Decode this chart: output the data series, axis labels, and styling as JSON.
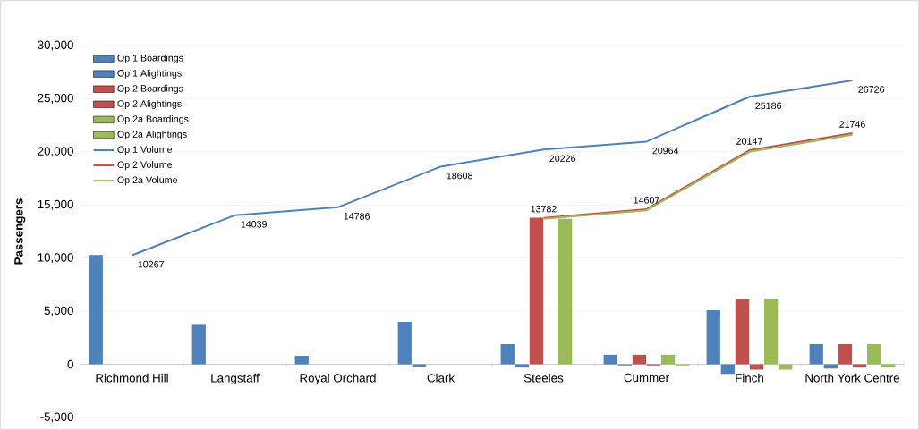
{
  "chart_data": {
    "type": "bar",
    "ylabel": "Passengers",
    "categories": [
      "Richmond Hill",
      "Langstaff",
      "Royal Orchard",
      "Clark",
      "Steeles",
      "Cummer",
      "Finch",
      "North York Centre"
    ],
    "series": [
      {
        "name": "Op 1 Boardings",
        "color": "#4f81bd",
        "values": [
          10300,
          3800,
          800,
          4000,
          1900,
          900,
          5100,
          1900
        ]
      },
      {
        "name": "Op 1 Alightings",
        "color": "#4f81bd",
        "values": [
          0,
          0,
          0,
          -200,
          -300,
          -100,
          -900,
          -400
        ]
      },
      {
        "name": "Op 2 Boardings",
        "color": "#c0504d",
        "values": [
          0,
          0,
          0,
          0,
          13800,
          900,
          6100,
          1900
        ]
      },
      {
        "name": "Op 2 Alightings",
        "color": "#c0504d",
        "values": [
          0,
          0,
          0,
          0,
          0,
          -100,
          -500,
          -300
        ]
      },
      {
        "name": "Op 2a Boardings",
        "color": "#9bbb59",
        "values": [
          0,
          0,
          0,
          0,
          13700,
          900,
          6100,
          1900
        ]
      },
      {
        "name": "Op 2a Alightings",
        "color": "#9bbb59",
        "values": [
          0,
          0,
          0,
          0,
          0,
          -100,
          -500,
          -300
        ]
      },
      {
        "name": "Op 1 Volume",
        "type": "line",
        "color": "#4f81bd",
        "values": [
          10267,
          14039,
          14786,
          18608,
          20226,
          20964,
          25186,
          26726
        ],
        "value_labels": [
          "10267",
          "14039",
          "14786",
          "18608",
          "20226",
          "20964",
          "25186",
          "26726"
        ]
      },
      {
        "name": "Op 2 Volume",
        "type": "line",
        "color": "#c0504d",
        "values": [
          null,
          null,
          null,
          null,
          13782,
          14607,
          20147,
          21746
        ],
        "value_labels": [
          null,
          null,
          null,
          null,
          "13782",
          "14607",
          "20147",
          "21746"
        ]
      },
      {
        "name": "Op 2a Volume",
        "type": "line",
        "color": "#9bbb59",
        "values": [
          null,
          null,
          null,
          null,
          13700,
          14500,
          20000,
          21600
        ]
      }
    ],
    "ylim": [
      -5000,
      30000
    ],
    "yticks": [
      {
        "value": -5000,
        "label": "-5,000"
      },
      0,
      {
        "value": 5000,
        "label": "5,000"
      },
      {
        "value": 10000,
        "label": "10,000"
      },
      {
        "value": 15000,
        "label": "15,000"
      },
      {
        "value": 20000,
        "label": "20,000"
      },
      {
        "value": 25000,
        "label": "25,000"
      },
      {
        "value": 30000,
        "label": "30,000"
      }
    ],
    "grid": "y",
    "legend": "top left",
    "marker": "none"
  }
}
